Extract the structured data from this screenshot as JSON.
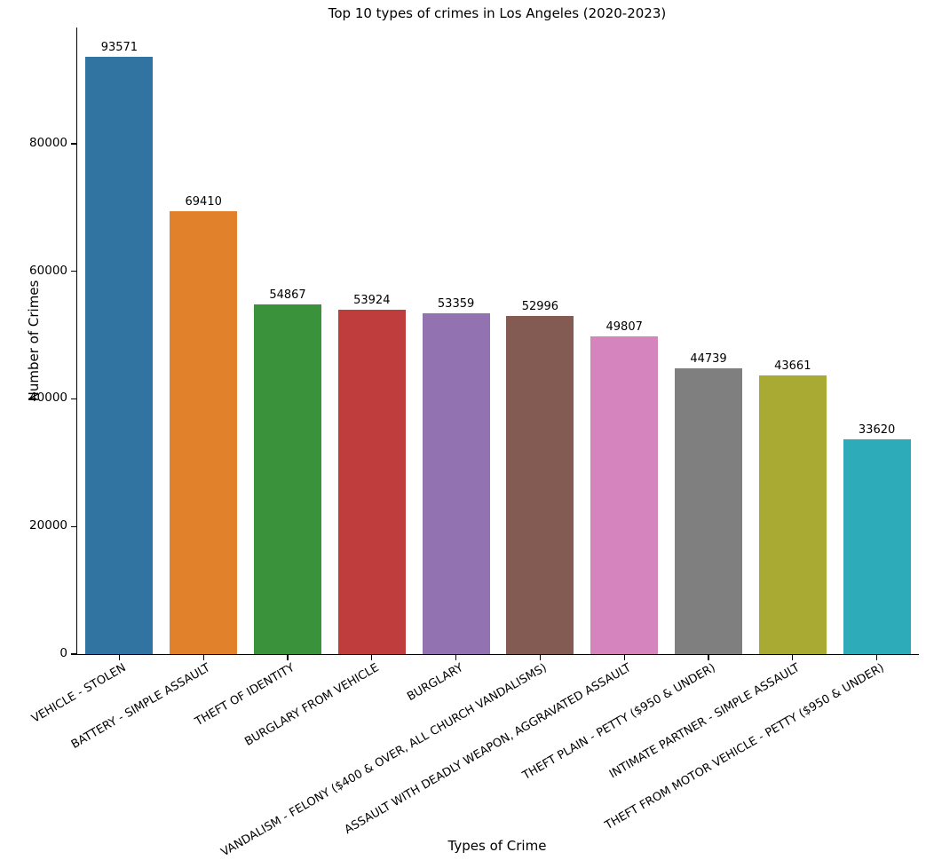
{
  "chart_data": {
    "type": "bar",
    "title": "Top 10 types of crimes in Los Angeles (2020-2023)",
    "xlabel": "Types of Crime",
    "ylabel": "Number of Crimes",
    "categories": [
      "VEHICLE - STOLEN",
      "BATTERY - SIMPLE ASSAULT",
      "THEFT OF IDENTITY",
      "BURGLARY FROM VEHICLE",
      "BURGLARY",
      "VANDALISM - FELONY ($400 & OVER, ALL CHURCH VANDALISMS)",
      "ASSAULT WITH DEADLY WEAPON, AGGRAVATED ASSAULT",
      "THEFT PLAIN - PETTY ($950 & UNDER)",
      "INTIMATE PARTNER - SIMPLE ASSAULT",
      "THEFT FROM MOTOR VEHICLE - PETTY ($950 & UNDER)"
    ],
    "values": [
      93571,
      69410,
      54867,
      53924,
      53359,
      52996,
      49807,
      44739,
      43661,
      33620
    ],
    "bar_labels": [
      "93571",
      "69410",
      "54867",
      "53924",
      "53359",
      "52996",
      "49807",
      "44739",
      "43661",
      "33620"
    ],
    "bar_colors": [
      "#3274A1",
      "#E1812C",
      "#3A923A",
      "#C03D3E",
      "#9372B2",
      "#845B53",
      "#D684BD",
      "#7F7F7F",
      "#A9AA33",
      "#2EABB8"
    ],
    "ylim": [
      0,
      98200
    ],
    "yticks": [
      0,
      20000,
      40000,
      60000,
      80000
    ],
    "ytick_labels": [
      "0",
      "20000",
      "40000",
      "60000",
      "80000"
    ],
    "grid": false,
    "legend": null,
    "spine_color": "#000000",
    "text_color": "#000000",
    "background_color": "#ffffff"
  }
}
